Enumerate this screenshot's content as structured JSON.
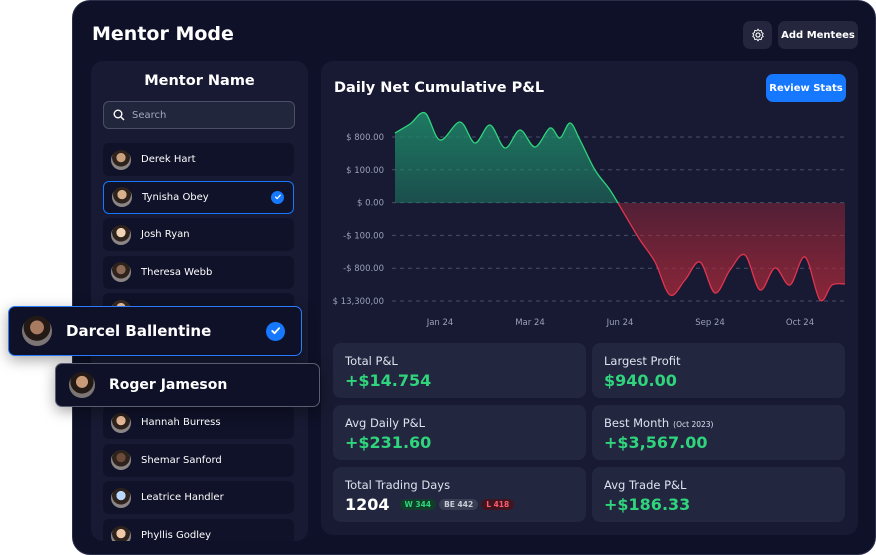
{
  "header": {
    "title": "Mentor Mode",
    "add_button": "Add Mentees"
  },
  "mentors": {
    "title": "Mentor Name",
    "search_placeholder": "Search",
    "list": [
      {
        "name": "Derek Hart"
      },
      {
        "name": "Tynisha Obey",
        "selected": true
      },
      {
        "name": "Josh Ryan"
      },
      {
        "name": "Theresa Webb"
      },
      {
        "name": "Hannah Burress"
      },
      {
        "name": "Shemar Sanford"
      },
      {
        "name": "Leatrice Handler"
      },
      {
        "name": "Phyllis Godley"
      }
    ],
    "floating": [
      {
        "name": "Darcel Ballentine",
        "selected": true
      },
      {
        "name": "Roger Jameson"
      }
    ]
  },
  "chart": {
    "title": "Daily Net Cumulative P&L",
    "button": "Review Stats",
    "y_labels": [
      "$ 800.00",
      "$ 100.00",
      "$ 0.00",
      "-$ 100.00",
      "-$ 800.00",
      "$ 13,300,00"
    ],
    "x_labels": [
      "Jan 24",
      "Mar 24",
      "Jun 24",
      "Sep 24",
      "Oct 24"
    ]
  },
  "stats": [
    {
      "label": "Total P&L",
      "value": "+$14.754"
    },
    {
      "label": "Largest Profit",
      "value": "$940.00"
    },
    {
      "label": "Avg Daily P&L",
      "value": "+$231.60"
    },
    {
      "label": "Best Month",
      "note": "(Oct 2023)",
      "value": "+$3,567.00"
    },
    {
      "label": "Total Trading Days",
      "value": "1204",
      "badges": [
        "W 344",
        "BE 442",
        "L 418"
      ]
    },
    {
      "label": "Avg Trade P&L",
      "value": "+$186.33"
    }
  ]
}
